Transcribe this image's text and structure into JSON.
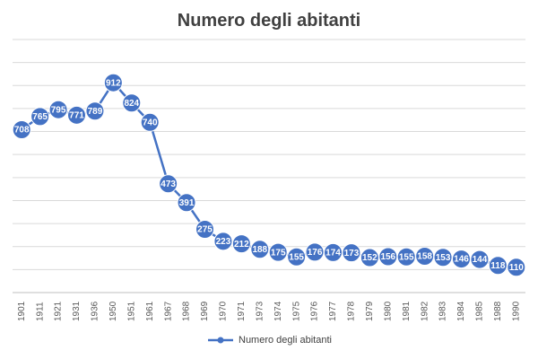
{
  "chart_data": {
    "type": "line",
    "title": "Numero degli abitanti",
    "categories": [
      "1901",
      "1911",
      "1921",
      "1931",
      "1936",
      "1950",
      "1951",
      "1961",
      "1967",
      "1968",
      "1969",
      "1970",
      "1971",
      "1973",
      "1974",
      "1975",
      "1976",
      "1977",
      "1978",
      "1979",
      "1980",
      "1981",
      "1982",
      "1983",
      "1984",
      "1985",
      "1988",
      "1990"
    ],
    "series": [
      {
        "name": "Numero degli abitanti",
        "values": [
          708,
          765,
          795,
          771,
          789,
          912,
          824,
          740,
          473,
          391,
          275,
          223,
          212,
          188,
          175,
          155,
          176,
          174,
          173,
          152,
          156,
          155,
          158,
          153,
          146,
          144,
          118,
          110
        ],
        "color": "#4472c4"
      }
    ],
    "ylim": [
      0,
      1100
    ],
    "grid": true,
    "legend_position": "bottom"
  }
}
